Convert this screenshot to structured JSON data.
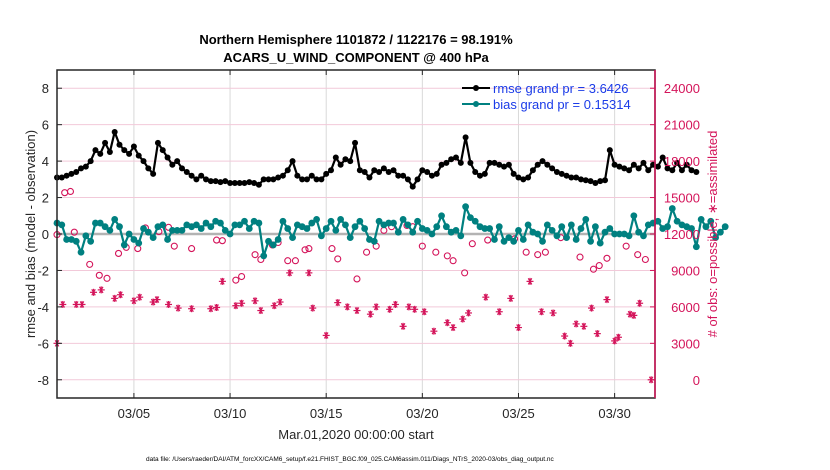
{
  "chart_data": {
    "type": "line",
    "title": [
      "Northern Hemisphere 1101872 / 1122176 = 98.191%",
      "ACARS_U_WIND_COMPONENT @ 400 hPa"
    ],
    "xlabel": "Mar.01,2020 00:00:00 start",
    "ylabel": "rmse and bias (model - observation)",
    "ylabel_right": "# of obs: o=possible; ∗=assimilated",
    "footnote": "data file: /Users/raeder/DAI/ATM_forcXX/CAM6_setup/f.e21.FHIST_BGC.f09_025.CAM6assim.011/Diags_NTrS_2020-03/obs_diag_output.nc",
    "x_unit": "day of March 2020 (1 = 03/01 00:00)",
    "xlim": [
      1,
      32.1
    ],
    "x_ticks": [
      5,
      10,
      15,
      20,
      25,
      30
    ],
    "x_tick_labels": [
      "03/05",
      "03/10",
      "03/15",
      "03/20",
      "03/25",
      "03/30"
    ],
    "ylim": [
      -9,
      9
    ],
    "y_ticks": [
      -8,
      -6,
      -4,
      -2,
      0,
      2,
      4,
      6,
      8
    ],
    "y_tick_labels": [
      "-8",
      "-6",
      "-4",
      "-2",
      "0",
      "2",
      "4",
      "6",
      "8"
    ],
    "ylim_right": [
      -1500,
      25500
    ],
    "y_ticks_right": [
      0,
      3000,
      6000,
      9000,
      12000,
      15000,
      18000,
      21000,
      24000
    ],
    "y_tick_labels_right": [
      "0",
      "3000",
      "6000",
      "9000",
      "12000",
      "15000",
      "18000",
      "21000",
      "24000"
    ],
    "grid": true,
    "legend_position": "top-right",
    "legend": [
      {
        "label": "rmse grand pr = 3.6426",
        "color": "#000000"
      },
      {
        "label": "bias grand pr = 0.15314",
        "color": "#008080"
      }
    ],
    "colors": {
      "rmse": "#000000",
      "bias": "#008080",
      "obs": "#d4145a",
      "zero_line": "#b3b3b3",
      "grid_x": "#d9d9d9",
      "grid_y": "#f2c9d9",
      "legend_text": "#1a3be8"
    },
    "x_step_days": 0.25,
    "x_start": 1.0,
    "series": [
      {
        "name": "rmse",
        "axis": "left",
        "values": [
          3.1,
          3.1,
          3.2,
          3.3,
          3.4,
          3.6,
          3.7,
          4.0,
          4.6,
          4.4,
          5.0,
          4.5,
          5.6,
          4.9,
          4.6,
          4.4,
          4.8,
          4.3,
          4.0,
          3.6,
          3.3,
          5.0,
          4.6,
          4.2,
          3.8,
          4.0,
          3.6,
          3.4,
          3.2,
          3.0,
          3.2,
          3.0,
          2.9,
          2.9,
          2.85,
          2.9,
          2.8,
          2.8,
          2.8,
          2.8,
          2.85,
          2.8,
          2.7,
          3.0,
          3.0,
          3.0,
          3.1,
          3.2,
          3.5,
          4.0,
          3.2,
          3.0,
          3.0,
          3.2,
          3.0,
          3.0,
          3.3,
          3.5,
          4.2,
          3.8,
          4.1,
          4.0,
          5.0,
          3.5,
          3.4,
          3.1,
          3.5,
          3.4,
          3.6,
          3.4,
          3.5,
          3.2,
          3.2,
          3.0,
          2.6,
          3.0,
          3.5,
          3.4,
          3.2,
          3.3,
          3.8,
          3.9,
          4.1,
          4.2,
          3.9,
          5.3,
          3.9,
          3.4,
          3.2,
          3.3,
          3.9,
          3.9,
          3.8,
          3.7,
          3.8,
          3.3,
          3.1,
          3.0,
          3.1,
          3.5,
          3.8,
          4.0,
          3.8,
          3.6,
          3.4,
          3.3,
          3.2,
          3.1,
          3.1,
          3.0,
          2.95,
          2.9,
          2.8,
          2.9,
          2.95,
          4.6,
          3.8,
          3.7,
          3.6,
          3.5,
          3.8,
          3.6,
          3.9,
          3.5,
          3.8,
          3.7,
          4.2,
          3.6,
          3.5,
          3.9,
          3.5,
          3.8,
          3.5,
          3.4
        ]
      },
      {
        "name": "bias",
        "axis": "left",
        "values": [
          0.6,
          0.5,
          -0.3,
          -0.3,
          -0.4,
          -1.0,
          -0.1,
          -0.4,
          0.6,
          0.6,
          0.4,
          0.2,
          0.8,
          0.4,
          -0.6,
          0.0,
          -0.3,
          -0.5,
          0.3,
          0.1,
          -0.2,
          0.4,
          0.5,
          -0.3,
          0.2,
          0.2,
          0.2,
          0.5,
          0.4,
          0.5,
          0.3,
          0.6,
          0.4,
          0.7,
          0.6,
          0.2,
          0.0,
          0.5,
          0.5,
          0.7,
          0.3,
          0.7,
          0.6,
          -1.2,
          -0.4,
          -0.6,
          -0.3,
          0.7,
          0.3,
          -0.2,
          0.5,
          0.4,
          0.3,
          0.6,
          0.8,
          -0.1,
          0.3,
          0.7,
          0.2,
          0.8,
          0.5,
          -0.2,
          0.4,
          0.7,
          0.3,
          -0.3,
          -0.4,
          0.7,
          0.5,
          0.6,
          0.6,
          0.1,
          0.8,
          0.5,
          0.1,
          0.7,
          0.3,
          0.2,
          0.0,
          0.4,
          1.0,
          0.4,
          0.1,
          0.2,
          -0.1,
          1.5,
          0.9,
          0.7,
          0.4,
          0.3,
          0.3,
          -0.3,
          0.4,
          -0.4,
          -0.2,
          -0.4,
          0.2,
          -0.3,
          0.5,
          0.1,
          0.0,
          -0.4,
          0.5,
          0.2,
          -0.1,
          0.4,
          -0.2,
          0.5,
          -0.3,
          0.3,
          0.8,
          -0.4,
          0.4,
          -0.5,
          0.1,
          0.3,
          0.0,
          0.0,
          0.0,
          -0.1,
          1.0,
          0.1,
          -0.1,
          0.5,
          0.6,
          0.7,
          0.3,
          0.4,
          1.4,
          0.7,
          0.5,
          0.4,
          0.3,
          -0.7,
          0.8,
          0.4,
          0.7,
          -0.2,
          0.1,
          0.4
        ]
      },
      {
        "name": "obs_possible",
        "axis": "right",
        "marker": "o",
        "points": [
          [
            1.0,
            11950
          ],
          [
            1.4,
            15400
          ],
          [
            1.7,
            15500
          ],
          [
            1.9,
            12150
          ],
          [
            2.7,
            9500
          ],
          [
            3.2,
            8600
          ],
          [
            3.6,
            8350
          ],
          [
            4.2,
            10400
          ],
          [
            4.6,
            10900
          ],
          [
            5.2,
            10800
          ],
          [
            5.6,
            12500
          ],
          [
            6.3,
            12200
          ],
          [
            6.8,
            12550
          ],
          [
            7.1,
            11000
          ],
          [
            8.0,
            10800
          ],
          [
            9.3,
            11500
          ],
          [
            9.6,
            11450
          ],
          [
            10.3,
            8200
          ],
          [
            10.6,
            8500
          ],
          [
            11.3,
            10300
          ],
          [
            11.6,
            9900
          ],
          [
            12.2,
            11100
          ],
          [
            12.5,
            11300
          ],
          [
            13.0,
            9800
          ],
          [
            13.4,
            9800
          ],
          [
            13.9,
            10700
          ],
          [
            14.1,
            10800
          ],
          [
            15.3,
            10800
          ],
          [
            15.6,
            9950
          ],
          [
            16.6,
            8300
          ],
          [
            17.1,
            10500
          ],
          [
            17.6,
            11000
          ],
          [
            18.0,
            12300
          ],
          [
            18.4,
            12600
          ],
          [
            19.2,
            12700
          ],
          [
            19.5,
            12600
          ],
          [
            20.0,
            11000
          ],
          [
            20.7,
            10500
          ],
          [
            21.3,
            10200
          ],
          [
            21.6,
            9800
          ],
          [
            22.2,
            8800
          ],
          [
            22.6,
            11200
          ],
          [
            23.4,
            11500
          ],
          [
            24.8,
            11600
          ],
          [
            25.4,
            10500
          ],
          [
            26.0,
            10300
          ],
          [
            26.4,
            10500
          ],
          [
            27.2,
            11700
          ],
          [
            28.2,
            10100
          ],
          [
            28.9,
            9100
          ],
          [
            29.2,
            9400
          ],
          [
            29.6,
            10000
          ],
          [
            30.6,
            11000
          ],
          [
            31.2,
            10300
          ],
          [
            31.6,
            9900
          ]
        ]
      },
      {
        "name": "obs_assimilated",
        "axis": "right",
        "marker": "*",
        "points": [
          [
            1.0,
            3000
          ],
          [
            1.3,
            6200
          ],
          [
            2.0,
            6200
          ],
          [
            2.3,
            6200
          ],
          [
            2.9,
            7200
          ],
          [
            3.3,
            7400
          ],
          [
            4.0,
            6700
          ],
          [
            4.3,
            7000
          ],
          [
            5.0,
            6500
          ],
          [
            5.3,
            6800
          ],
          [
            6.0,
            6400
          ],
          [
            6.2,
            6600
          ],
          [
            6.8,
            6200
          ],
          [
            7.3,
            5900
          ],
          [
            8.0,
            5850
          ],
          [
            9.0,
            5850
          ],
          [
            9.3,
            5950
          ],
          [
            9.6,
            8100
          ],
          [
            10.3,
            6100
          ],
          [
            10.6,
            6300
          ],
          [
            11.3,
            6500
          ],
          [
            11.6,
            5700
          ],
          [
            12.3,
            6100
          ],
          [
            12.6,
            6400
          ],
          [
            13.1,
            8800
          ],
          [
            14.1,
            8800
          ],
          [
            14.3,
            5900
          ],
          [
            15.0,
            3650
          ],
          [
            15.6,
            6350
          ],
          [
            16.1,
            6000
          ],
          [
            16.6,
            5700
          ],
          [
            17.3,
            5400
          ],
          [
            17.6,
            6000
          ],
          [
            18.3,
            5800
          ],
          [
            18.6,
            6200
          ],
          [
            19.0,
            4400
          ],
          [
            19.3,
            6000
          ],
          [
            19.6,
            5800
          ],
          [
            20.1,
            5600
          ],
          [
            20.6,
            4000
          ],
          [
            21.3,
            4700
          ],
          [
            21.6,
            4300
          ],
          [
            22.1,
            5000
          ],
          [
            22.4,
            5500
          ],
          [
            23.3,
            6800
          ],
          [
            24.0,
            5600
          ],
          [
            24.6,
            6700
          ],
          [
            25.0,
            4300
          ],
          [
            25.6,
            8100
          ],
          [
            26.2,
            5600
          ],
          [
            26.8,
            5500
          ],
          [
            27.4,
            3600
          ],
          [
            27.7,
            3000
          ],
          [
            28.0,
            4600
          ],
          [
            28.4,
            4400
          ],
          [
            28.8,
            5900
          ],
          [
            29.1,
            3800
          ],
          [
            29.6,
            6600
          ],
          [
            30.0,
            3200
          ],
          [
            30.2,
            3500
          ],
          [
            30.8,
            5400
          ],
          [
            31.0,
            5300
          ],
          [
            31.3,
            6300
          ],
          [
            31.9,
            0
          ]
        ]
      }
    ]
  }
}
